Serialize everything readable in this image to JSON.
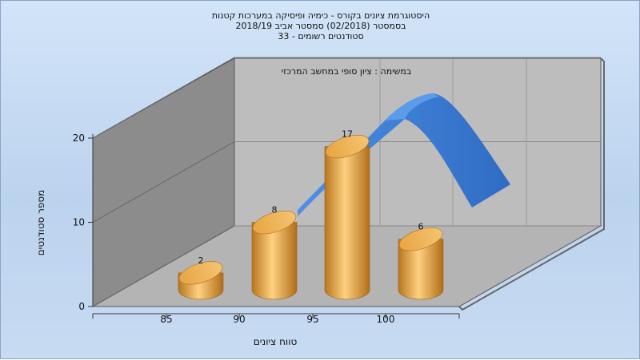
{
  "titles": {
    "line1": "היסטוגרמת ציונים בקורס - כימיה ופיסיקה במערכות קטנות",
    "line2": "בסמסטר  (02/2018)  סמסטר אביב 2018/19",
    "line3": "סטודנטים רשומים - 33"
  },
  "chart_data": {
    "type": "bar",
    "categories": [
      "85",
      "90",
      "95",
      "100"
    ],
    "values": [
      2,
      8,
      17,
      6
    ],
    "xlabel": "טווח ציונים",
    "ylabel": "מספר סטודנטים",
    "ylim": [
      0,
      20
    ],
    "yticks": [
      "0",
      "10",
      "20"
    ],
    "annotation": "במשימה : ציון סופי במחשב המרכזי",
    "grid": true,
    "style": "3d-cylinders-with-ribbon",
    "colors": {
      "bar": "#e8a544",
      "ribbon": "#3f7fd6",
      "wall": "#8c8c8c",
      "floor": "#b4b4b4",
      "back": "#bdbdbd"
    }
  }
}
